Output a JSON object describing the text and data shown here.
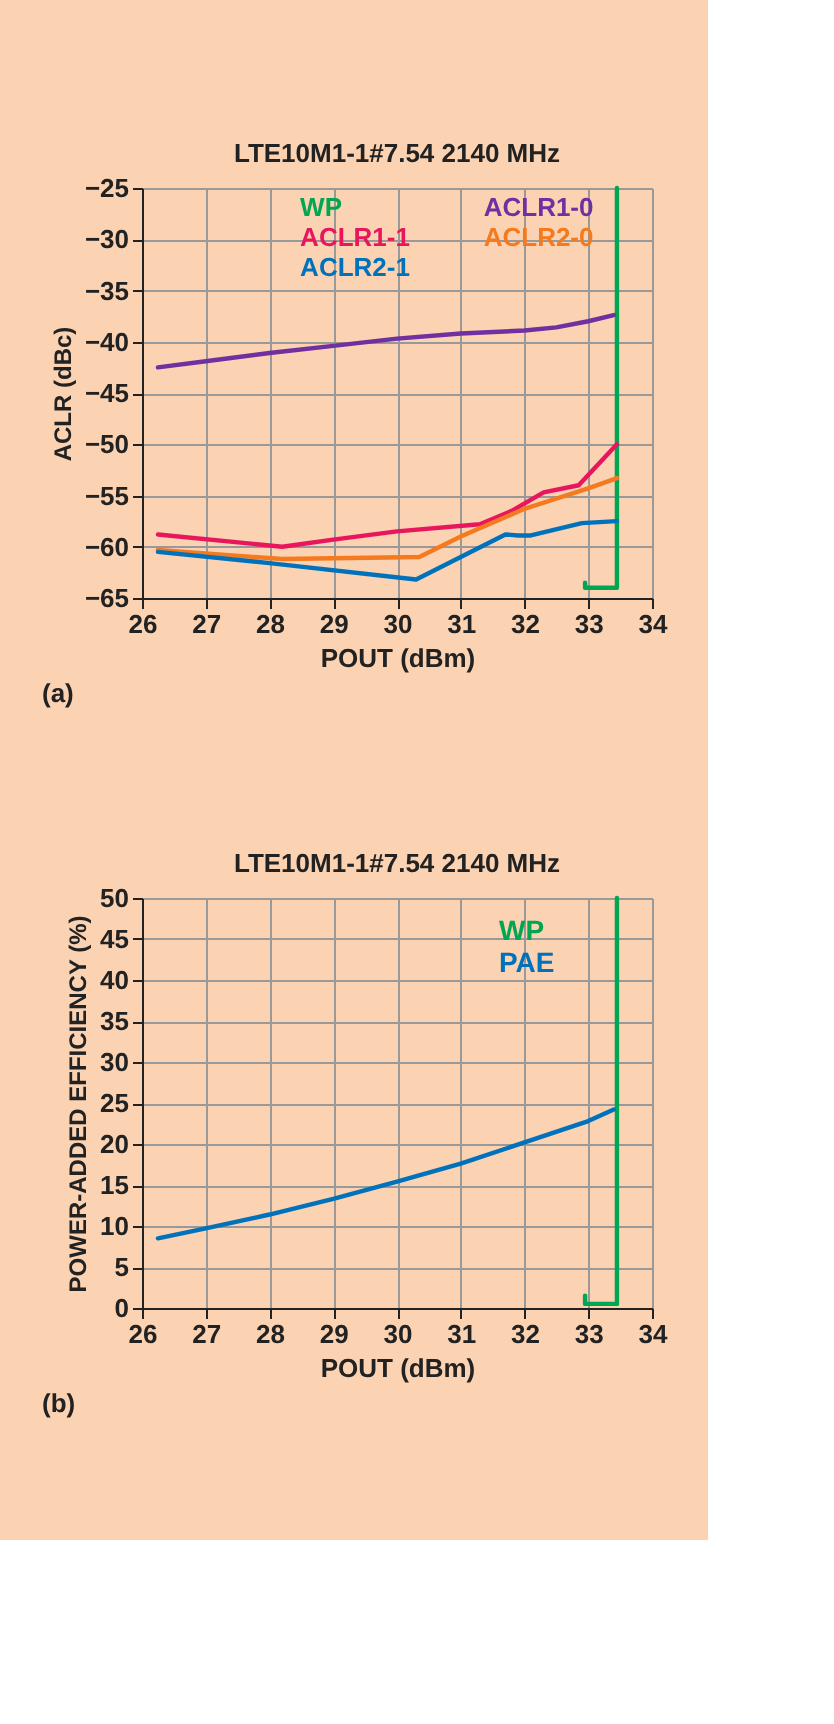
{
  "chart_data": [
    {
      "type": "line",
      "title": "LTE10M1-1#7.54 2140 MHz",
      "xlabel": "POUT (dBm)",
      "ylabel": "ACLR (dBc)",
      "xlim": [
        26,
        34
      ],
      "xticks": [
        26,
        27,
        28,
        29,
        30,
        31,
        32,
        33,
        34
      ],
      "ylim": [
        -65,
        -25
      ],
      "yticks": [
        -65,
        -60,
        -55,
        -50,
        -45,
        -40,
        -35,
        -30,
        -25
      ],
      "grid": true,
      "legend": "top",
      "marker": "none",
      "line_style": "solid",
      "annotations": [
        "(a)"
      ],
      "series": [
        {
          "name": "WP",
          "color": "#00a651",
          "x": [
            32.95,
            32.95,
            33.45,
            33.45
          ],
          "values": [
            -63.5,
            -64,
            -64,
            -25
          ]
        },
        {
          "name": "ACLR1-0",
          "color": "#7030a0",
          "x": [
            26.25,
            27,
            28,
            29,
            30,
            31,
            32,
            32.5,
            33,
            33.4
          ],
          "values": [
            -42.5,
            -41.9,
            -41.1,
            -40.4,
            -39.7,
            -39.2,
            -38.9,
            -38.6,
            -38.0,
            -37.4
          ]
        },
        {
          "name": "ACLR1-1",
          "color": "#e8175d",
          "x": [
            26.25,
            28.2,
            29,
            30,
            31.3,
            31.8,
            32.3,
            32.85,
            33.45
          ],
          "values": [
            -58.8,
            -60.0,
            -59.3,
            -58.5,
            -57.8,
            -56.5,
            -54.7,
            -54.0,
            -50.0
          ]
        },
        {
          "name": "ACLR2-0",
          "color": "#f47a20",
          "x": [
            26.25,
            28.2,
            30.35,
            31,
            32,
            33,
            33.45
          ],
          "values": [
            -60.3,
            -61.2,
            -61.0,
            -59.0,
            -56.3,
            -54.3,
            -53.3
          ]
        },
        {
          "name": "ACLR2-1",
          "color": "#0072bc",
          "x": [
            26.25,
            28,
            30.3,
            31,
            31.7,
            31.9,
            32.1,
            32.9,
            33.45
          ],
          "values": [
            -60.5,
            -61.6,
            -63.2,
            -61.0,
            -58.8,
            -58.9,
            -58.9,
            -57.7,
            -57.5
          ]
        }
      ]
    },
    {
      "type": "line",
      "title": "LTE10M1-1#7.54 2140 MHz",
      "xlabel": "POUT (dBm)",
      "ylabel": "POWER-ADDED EFFICIENCY (%)",
      "xlim": [
        26,
        34
      ],
      "xticks": [
        26,
        27,
        28,
        29,
        30,
        31,
        32,
        33,
        34
      ],
      "ylim": [
        0,
        50
      ],
      "yticks": [
        0,
        5,
        10,
        15,
        20,
        25,
        30,
        35,
        40,
        45,
        50
      ],
      "grid": true,
      "legend": "top right",
      "marker": "none",
      "line_style": "solid",
      "annotations": [
        "(b)"
      ],
      "series": [
        {
          "name": "WP",
          "color": "#00a651",
          "x": [
            32.95,
            32.95,
            33.45,
            33.45
          ],
          "values": [
            1.5,
            0.5,
            0.5,
            50
          ]
        },
        {
          "name": "PAE",
          "color": "#0072bc",
          "x": [
            26.25,
            27,
            28,
            29,
            30,
            31,
            32,
            33,
            33.4
          ],
          "values": [
            8.5,
            9.7,
            11.4,
            13.3,
            15.4,
            17.6,
            20.2,
            22.8,
            24.2
          ]
        }
      ]
    }
  ]
}
